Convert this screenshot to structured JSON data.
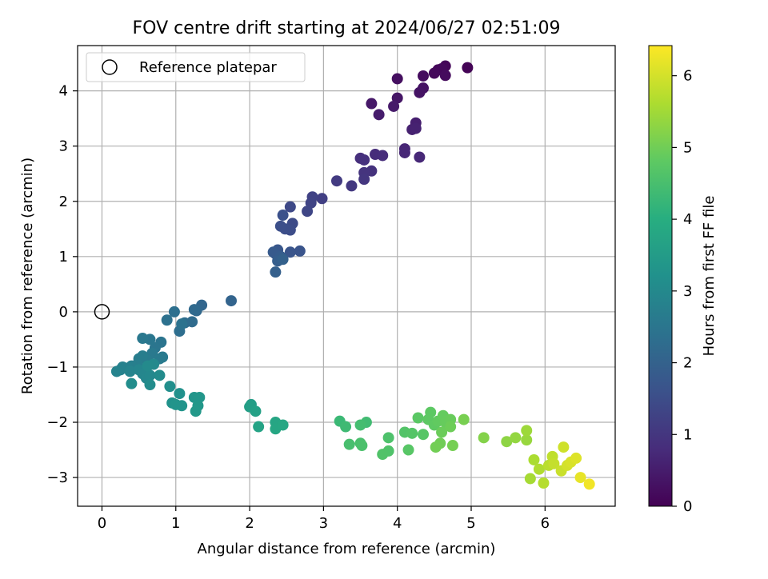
{
  "chart_data": {
    "type": "scatter",
    "title": "FOV centre drift starting at 2024/06/27 02:51:09",
    "xlabel": "Angular distance from reference (arcmin)",
    "ylabel": "Rotation from reference (arcmin)",
    "xlim": [
      -0.33,
      6.95
    ],
    "ylim": [
      -3.52,
      4.82
    ],
    "xticks": [
      0,
      1,
      2,
      3,
      4,
      5,
      6
    ],
    "yticks": [
      -3,
      -2,
      -1,
      0,
      1,
      2,
      3,
      4
    ],
    "grid": true,
    "legend": {
      "position": "top-left",
      "entries": [
        "Reference platepar"
      ]
    },
    "reference_point": {
      "x": 0,
      "y": 0
    },
    "colorbar": {
      "label": "Hours from first FF file",
      "colormap": "viridis",
      "range": [
        0,
        6.42
      ],
      "ticks": [
        0,
        1,
        2,
        3,
        4,
        5,
        6
      ]
    },
    "points": [
      {
        "x": 4.95,
        "y": 4.42,
        "h": 0.05
      },
      {
        "x": 4.65,
        "y": 4.45,
        "h": 0.08
      },
      {
        "x": 4.55,
        "y": 4.38,
        "h": 0.1
      },
      {
        "x": 4.6,
        "y": 4.4,
        "h": 0.12
      },
      {
        "x": 4.5,
        "y": 4.32,
        "h": 0.15
      },
      {
        "x": 4.65,
        "y": 4.28,
        "h": 0.18
      },
      {
        "x": 4.35,
        "y": 4.27,
        "h": 0.2
      },
      {
        "x": 4.0,
        "y": 4.22,
        "h": 0.25
      },
      {
        "x": 4.35,
        "y": 4.05,
        "h": 0.3
      },
      {
        "x": 4.3,
        "y": 3.97,
        "h": 0.33
      },
      {
        "x": 4.0,
        "y": 3.87,
        "h": 0.38
      },
      {
        "x": 3.65,
        "y": 3.77,
        "h": 0.42
      },
      {
        "x": 3.95,
        "y": 3.72,
        "h": 0.45
      },
      {
        "x": 3.75,
        "y": 3.57,
        "h": 0.5
      },
      {
        "x": 4.25,
        "y": 3.42,
        "h": 0.55
      },
      {
        "x": 4.2,
        "y": 3.3,
        "h": 0.58
      },
      {
        "x": 4.25,
        "y": 3.32,
        "h": 0.6
      },
      {
        "x": 4.1,
        "y": 2.95,
        "h": 0.68
      },
      {
        "x": 4.1,
        "y": 2.88,
        "h": 0.7
      },
      {
        "x": 4.3,
        "y": 2.8,
        "h": 0.72
      },
      {
        "x": 3.7,
        "y": 2.85,
        "h": 0.78
      },
      {
        "x": 3.8,
        "y": 2.83,
        "h": 0.8
      },
      {
        "x": 3.5,
        "y": 2.78,
        "h": 0.85
      },
      {
        "x": 3.55,
        "y": 2.75,
        "h": 0.88
      },
      {
        "x": 3.65,
        "y": 2.55,
        "h": 0.92
      },
      {
        "x": 3.55,
        "y": 2.52,
        "h": 0.95
      },
      {
        "x": 3.55,
        "y": 2.4,
        "h": 1.0
      },
      {
        "x": 3.38,
        "y": 2.28,
        "h": 1.05
      },
      {
        "x": 3.18,
        "y": 2.37,
        "h": 1.1
      },
      {
        "x": 2.98,
        "y": 2.05,
        "h": 1.2
      },
      {
        "x": 2.85,
        "y": 2.08,
        "h": 1.25
      },
      {
        "x": 2.83,
        "y": 1.97,
        "h": 1.3
      },
      {
        "x": 2.78,
        "y": 1.82,
        "h": 1.35
      },
      {
        "x": 2.55,
        "y": 1.9,
        "h": 1.4
      },
      {
        "x": 2.58,
        "y": 1.6,
        "h": 1.45
      },
      {
        "x": 2.55,
        "y": 1.48,
        "h": 1.5
      },
      {
        "x": 2.48,
        "y": 1.5,
        "h": 1.52
      },
      {
        "x": 2.42,
        "y": 1.55,
        "h": 1.55
      },
      {
        "x": 2.45,
        "y": 1.75,
        "h": 1.58
      },
      {
        "x": 2.68,
        "y": 1.1,
        "h": 1.65
      },
      {
        "x": 2.55,
        "y": 1.08,
        "h": 1.68
      },
      {
        "x": 2.38,
        "y": 1.12,
        "h": 1.72
      },
      {
        "x": 2.35,
        "y": 1.05,
        "h": 1.75
      },
      {
        "x": 2.32,
        "y": 1.08,
        "h": 1.8
      },
      {
        "x": 2.42,
        "y": 1.0,
        "h": 1.85
      },
      {
        "x": 2.38,
        "y": 0.92,
        "h": 1.9
      },
      {
        "x": 2.35,
        "y": 0.72,
        "h": 1.95
      },
      {
        "x": 2.45,
        "y": 0.95,
        "h": 1.98
      },
      {
        "x": 1.75,
        "y": 0.2,
        "h": 2.05
      },
      {
        "x": 1.35,
        "y": 0.12,
        "h": 2.1
      },
      {
        "x": 1.28,
        "y": 0.02,
        "h": 2.15
      },
      {
        "x": 1.25,
        "y": 0.04,
        "h": 2.18
      },
      {
        "x": 1.22,
        "y": -0.18,
        "h": 2.22
      },
      {
        "x": 1.12,
        "y": -0.2,
        "h": 2.25
      },
      {
        "x": 1.05,
        "y": -0.35,
        "h": 2.3
      },
      {
        "x": 0.98,
        "y": 0.0,
        "h": 2.33
      },
      {
        "x": 0.88,
        "y": -0.15,
        "h": 2.38
      },
      {
        "x": 1.08,
        "y": -0.22,
        "h": 2.4
      },
      {
        "x": 0.8,
        "y": -0.55,
        "h": 2.45
      },
      {
        "x": 0.72,
        "y": -0.65,
        "h": 2.48
      },
      {
        "x": 0.65,
        "y": -0.5,
        "h": 2.52
      },
      {
        "x": 0.55,
        "y": -0.48,
        "h": 2.55
      },
      {
        "x": 0.68,
        "y": -0.75,
        "h": 2.58
      },
      {
        "x": 0.82,
        "y": -0.82,
        "h": 2.6
      },
      {
        "x": 0.78,
        "y": -0.85,
        "h": 2.62
      },
      {
        "x": 0.62,
        "y": -0.88,
        "h": 2.65
      },
      {
        "x": 0.55,
        "y": -0.8,
        "h": 2.68
      },
      {
        "x": 0.5,
        "y": -0.85,
        "h": 2.7
      },
      {
        "x": 0.48,
        "y": -0.95,
        "h": 2.72
      },
      {
        "x": 0.4,
        "y": -0.98,
        "h": 2.75
      },
      {
        "x": 0.35,
        "y": -1.02,
        "h": 2.78
      },
      {
        "x": 0.28,
        "y": -1.0,
        "h": 2.8
      },
      {
        "x": 0.25,
        "y": -1.05,
        "h": 2.82
      },
      {
        "x": 0.2,
        "y": -1.08,
        "h": 2.85
      },
      {
        "x": 0.38,
        "y": -1.08,
        "h": 2.88
      },
      {
        "x": 0.5,
        "y": -1.05,
        "h": 2.9
      },
      {
        "x": 0.55,
        "y": -1.12,
        "h": 2.92
      },
      {
        "x": 0.6,
        "y": -1.2,
        "h": 2.95
      },
      {
        "x": 0.65,
        "y": -1.15,
        "h": 2.97
      },
      {
        "x": 0.7,
        "y": -0.95,
        "h": 3.0
      },
      {
        "x": 0.62,
        "y": -0.98,
        "h": 3.02
      },
      {
        "x": 0.78,
        "y": -1.15,
        "h": 3.05
      },
      {
        "x": 0.65,
        "y": -1.32,
        "h": 3.08
      },
      {
        "x": 0.4,
        "y": -1.3,
        "h": 3.1
      },
      {
        "x": 0.92,
        "y": -1.35,
        "h": 3.15
      },
      {
        "x": 1.05,
        "y": -1.48,
        "h": 3.2
      },
      {
        "x": 0.95,
        "y": -1.65,
        "h": 3.25
      },
      {
        "x": 1.0,
        "y": -1.68,
        "h": 3.28
      },
      {
        "x": 1.08,
        "y": -1.7,
        "h": 3.3
      },
      {
        "x": 1.25,
        "y": -1.55,
        "h": 3.33
      },
      {
        "x": 1.32,
        "y": -1.55,
        "h": 3.35
      },
      {
        "x": 1.3,
        "y": -1.7,
        "h": 3.38
      },
      {
        "x": 1.27,
        "y": -1.8,
        "h": 3.4
      },
      {
        "x": 2.02,
        "y": -1.68,
        "h": 3.55
      },
      {
        "x": 2.0,
        "y": -1.72,
        "h": 3.58
      },
      {
        "x": 2.08,
        "y": -1.8,
        "h": 3.62
      },
      {
        "x": 2.12,
        "y": -2.08,
        "h": 3.7
      },
      {
        "x": 2.35,
        "y": -2.0,
        "h": 3.75
      },
      {
        "x": 2.35,
        "y": -2.12,
        "h": 3.78
      },
      {
        "x": 2.45,
        "y": -2.05,
        "h": 3.82
      },
      {
        "x": 3.22,
        "y": -1.98,
        "h": 4.3
      },
      {
        "x": 3.3,
        "y": -2.08,
        "h": 4.35
      },
      {
        "x": 3.58,
        "y": -2.0,
        "h": 4.4
      },
      {
        "x": 3.5,
        "y": -2.05,
        "h": 4.45
      },
      {
        "x": 3.35,
        "y": -2.4,
        "h": 4.5
      },
      {
        "x": 3.5,
        "y": -2.38,
        "h": 4.52
      },
      {
        "x": 3.52,
        "y": -2.42,
        "h": 4.55
      },
      {
        "x": 3.88,
        "y": -2.28,
        "h": 4.58
      },
      {
        "x": 3.88,
        "y": -2.52,
        "h": 4.6
      },
      {
        "x": 3.8,
        "y": -2.58,
        "h": 4.62
      },
      {
        "x": 4.1,
        "y": -2.18,
        "h": 4.65
      },
      {
        "x": 4.2,
        "y": -2.2,
        "h": 4.68
      },
      {
        "x": 4.35,
        "y": -2.22,
        "h": 4.7
      },
      {
        "x": 4.15,
        "y": -2.5,
        "h": 4.72
      },
      {
        "x": 4.28,
        "y": -1.92,
        "h": 4.75
      },
      {
        "x": 4.45,
        "y": -1.82,
        "h": 4.78
      },
      {
        "x": 4.42,
        "y": -1.95,
        "h": 4.8
      },
      {
        "x": 4.5,
        "y": -2.05,
        "h": 4.82
      },
      {
        "x": 4.55,
        "y": -1.98,
        "h": 4.85
      },
      {
        "x": 4.62,
        "y": -1.88,
        "h": 4.88
      },
      {
        "x": 4.65,
        "y": -2.0,
        "h": 4.9
      },
      {
        "x": 4.72,
        "y": -1.95,
        "h": 4.92
      },
      {
        "x": 4.6,
        "y": -2.18,
        "h": 4.95
      },
      {
        "x": 4.72,
        "y": -2.08,
        "h": 4.97
      },
      {
        "x": 4.58,
        "y": -2.38,
        "h": 5.0
      },
      {
        "x": 4.52,
        "y": -2.45,
        "h": 5.02
      },
      {
        "x": 4.75,
        "y": -2.42,
        "h": 5.05
      },
      {
        "x": 4.9,
        "y": -1.95,
        "h": 5.08
      },
      {
        "x": 5.17,
        "y": -2.28,
        "h": 5.2
      },
      {
        "x": 5.48,
        "y": -2.35,
        "h": 5.3
      },
      {
        "x": 5.6,
        "y": -2.28,
        "h": 5.35
      },
      {
        "x": 5.75,
        "y": -2.32,
        "h": 5.4
      },
      {
        "x": 5.75,
        "y": -2.15,
        "h": 5.45
      },
      {
        "x": 5.8,
        "y": -3.02,
        "h": 5.55
      },
      {
        "x": 5.85,
        "y": -2.68,
        "h": 5.6
      },
      {
        "x": 5.92,
        "y": -2.85,
        "h": 5.65
      },
      {
        "x": 5.98,
        "y": -3.1,
        "h": 5.7
      },
      {
        "x": 6.05,
        "y": -2.78,
        "h": 5.75
      },
      {
        "x": 6.1,
        "y": -2.62,
        "h": 5.8
      },
      {
        "x": 6.12,
        "y": -2.75,
        "h": 5.85
      },
      {
        "x": 6.22,
        "y": -2.88,
        "h": 5.9
      },
      {
        "x": 6.25,
        "y": -2.45,
        "h": 5.95
      },
      {
        "x": 6.3,
        "y": -2.78,
        "h": 6.0
      },
      {
        "x": 6.35,
        "y": -2.72,
        "h": 6.05
      },
      {
        "x": 6.42,
        "y": -2.65,
        "h": 6.1
      },
      {
        "x": 6.48,
        "y": -3.0,
        "h": 6.2
      },
      {
        "x": 6.6,
        "y": -3.12,
        "h": 6.3
      }
    ]
  }
}
